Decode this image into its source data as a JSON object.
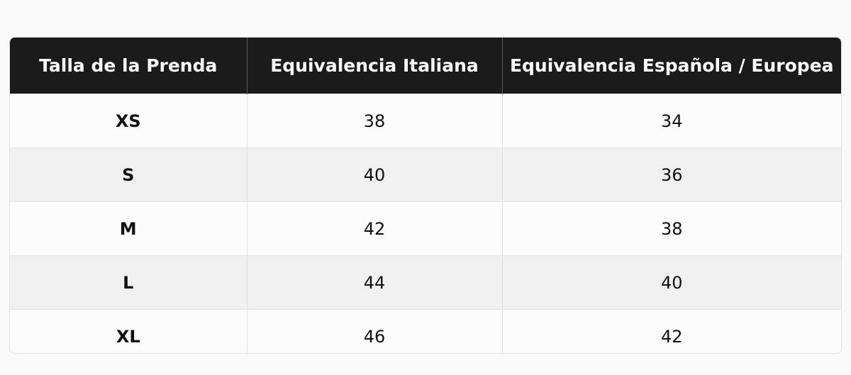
{
  "table": {
    "header": [
      "Talla de la Prenda",
      "Equivalencia Italiana",
      "Equivalencia Española / Europea"
    ],
    "rows": [
      [
        "XS",
        38,
        34
      ],
      [
        "S",
        40,
        36
      ],
      [
        "M",
        42,
        38
      ],
      [
        "L",
        44,
        40
      ],
      [
        "XL",
        46,
        42
      ]
    ]
  }
}
